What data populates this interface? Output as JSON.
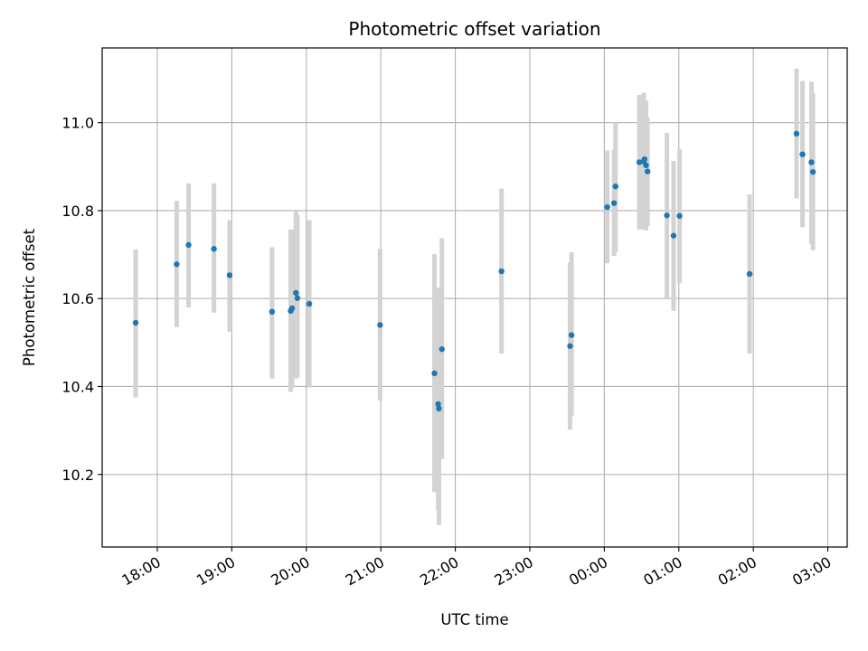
{
  "chart_data": {
    "type": "scatter",
    "title": "Photometric offset variation",
    "xlabel": "UTC time",
    "ylabel": "Photometric offset",
    "x_tick_labels": [
      "18:00",
      "19:00",
      "20:00",
      "21:00",
      "22:00",
      "23:00",
      "00:00",
      "01:00",
      "02:00",
      "03:00"
    ],
    "x_tick_hours": [
      0,
      1,
      2,
      3,
      4,
      5,
      6,
      7,
      8,
      9
    ],
    "y_ticks": [
      10.2,
      10.4,
      10.6,
      10.8,
      11.0
    ],
    "y_tick_labels": [
      "10.2",
      "10.4",
      "10.6",
      "10.8",
      "11.0"
    ],
    "xlim_hours_from_1800": [
      -0.74,
      9.26
    ],
    "ylim": [
      10.035,
      11.17
    ],
    "grid": true,
    "point_color": "#1f77b4",
    "errorbar_color": "#d3d3d3",
    "points": [
      {
        "t": -0.29,
        "y": 10.545,
        "lo": 10.375,
        "hi": 10.712
      },
      {
        "t": 0.26,
        "y": 10.678,
        "lo": 10.535,
        "hi": 10.822
      },
      {
        "t": 0.42,
        "y": 10.722,
        "lo": 10.58,
        "hi": 10.862
      },
      {
        "t": 0.76,
        "y": 10.713,
        "lo": 10.568,
        "hi": 10.862
      },
      {
        "t": 0.97,
        "y": 10.653,
        "lo": 10.525,
        "hi": 10.778
      },
      {
        "t": 1.54,
        "y": 10.57,
        "lo": 10.418,
        "hi": 10.717
      },
      {
        "t": 1.79,
        "y": 10.572,
        "lo": 10.388,
        "hi": 10.757
      },
      {
        "t": 1.81,
        "y": 10.578,
        "lo": 10.398,
        "hi": 10.757
      },
      {
        "t": 1.86,
        "y": 10.613,
        "lo": 10.418,
        "hi": 10.798
      },
      {
        "t": 1.88,
        "y": 10.601,
        "lo": 10.42,
        "hi": 10.79
      },
      {
        "t": 2.04,
        "y": 10.588,
        "lo": 10.398,
        "hi": 10.778
      },
      {
        "t": 2.99,
        "y": 10.54,
        "lo": 10.368,
        "hi": 10.713
      },
      {
        "t": 3.72,
        "y": 10.43,
        "lo": 10.16,
        "hi": 10.701
      },
      {
        "t": 3.77,
        "y": 10.36,
        "lo": 10.12,
        "hi": 10.625
      },
      {
        "t": 3.78,
        "y": 10.35,
        "lo": 10.085,
        "hi": 10.61
      },
      {
        "t": 3.82,
        "y": 10.485,
        "lo": 10.235,
        "hi": 10.737
      },
      {
        "t": 4.62,
        "y": 10.662,
        "lo": 10.475,
        "hi": 10.85
      },
      {
        "t": 5.54,
        "y": 10.492,
        "lo": 10.302,
        "hi": 10.682
      },
      {
        "t": 5.56,
        "y": 10.517,
        "lo": 10.332,
        "hi": 10.705
      },
      {
        "t": 6.04,
        "y": 10.808,
        "lo": 10.68,
        "hi": 10.937
      },
      {
        "t": 6.13,
        "y": 10.817,
        "lo": 10.697,
        "hi": 10.938
      },
      {
        "t": 6.15,
        "y": 10.855,
        "lo": 10.705,
        "hi": 11.0
      },
      {
        "t": 6.47,
        "y": 10.91,
        "lo": 10.757,
        "hi": 11.063
      },
      {
        "t": 6.53,
        "y": 10.912,
        "lo": 10.757,
        "hi": 11.068
      },
      {
        "t": 6.54,
        "y": 10.917,
        "lo": 10.76,
        "hi": 11.048
      },
      {
        "t": 6.56,
        "y": 10.903,
        "lo": 10.755,
        "hi": 11.05
      },
      {
        "t": 6.58,
        "y": 10.889,
        "lo": 10.765,
        "hi": 11.012
      },
      {
        "t": 6.84,
        "y": 10.789,
        "lo": 10.6,
        "hi": 10.977
      },
      {
        "t": 6.93,
        "y": 10.743,
        "lo": 10.572,
        "hi": 10.913
      },
      {
        "t": 7.01,
        "y": 10.788,
        "lo": 10.635,
        "hi": 10.94
      },
      {
        "t": 7.95,
        "y": 10.656,
        "lo": 10.475,
        "hi": 10.837
      },
      {
        "t": 8.58,
        "y": 10.975,
        "lo": 10.828,
        "hi": 11.123
      },
      {
        "t": 8.66,
        "y": 10.928,
        "lo": 10.762,
        "hi": 11.095
      },
      {
        "t": 8.78,
        "y": 10.91,
        "lo": 10.725,
        "hi": 11.093
      },
      {
        "t": 8.8,
        "y": 10.888,
        "lo": 10.71,
        "hi": 11.068
      }
    ]
  }
}
